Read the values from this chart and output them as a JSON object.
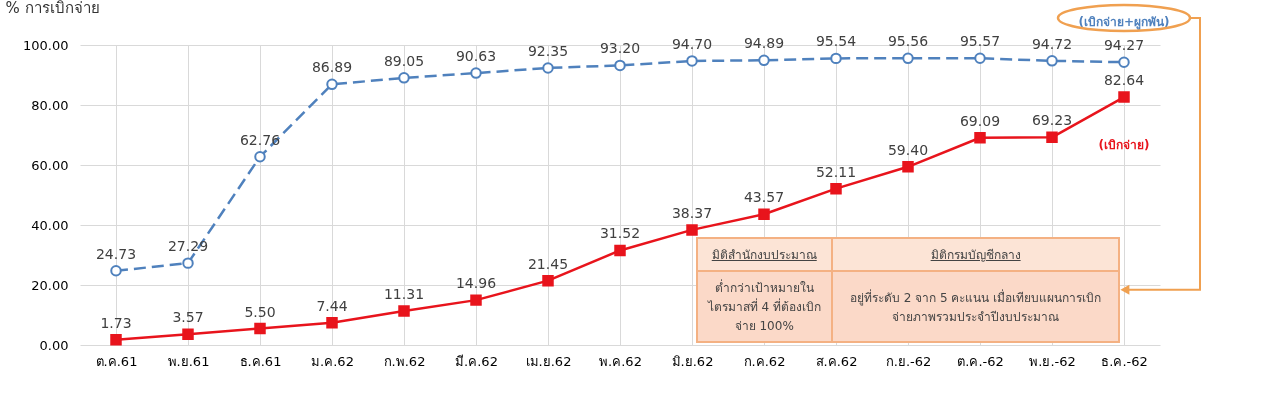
{
  "chart_data": {
    "type": "line",
    "ylabel": "% การเบิกจ่าย",
    "categories": [
      "ต.ค.61",
      "พ.ย.61",
      "ธ.ค.61",
      "ม.ค.62",
      "ก.พ.62",
      "มี.ค.62",
      "เม.ย.62",
      "พ.ค.62",
      "มิ.ย.62",
      "ก.ค.62",
      "ส.ค.62",
      "ก.ย.-62",
      "ต.ค.-62",
      "พ.ย.-62",
      "ธ.ค.-62"
    ],
    "series": [
      {
        "name": "(เบิกจ่าย+ผูกพัน)",
        "color": "#4f81bd",
        "line_style": "dashed",
        "marker": "circle",
        "values": [
          24.73,
          27.29,
          62.76,
          86.89,
          89.05,
          90.63,
          92.35,
          93.2,
          94.7,
          94.89,
          95.54,
          95.56,
          95.57,
          94.72,
          94.27
        ],
        "value_labels": [
          "24.73",
          "27.29",
          "62.76",
          "86.89",
          "89.05",
          "90.63",
          "92.35",
          "93.20",
          "94.70",
          "94.89",
          "95.54",
          "95.56",
          "95.57",
          "94.72",
          "94.27"
        ]
      },
      {
        "name": "(เบิกจ่าย)",
        "color": "#e8141c",
        "line_style": "solid",
        "marker": "square",
        "values": [
          1.73,
          3.57,
          5.5,
          7.44,
          11.31,
          14.96,
          21.45,
          31.52,
          38.37,
          43.57,
          52.11,
          59.4,
          69.09,
          69.23,
          82.64
        ],
        "value_labels": [
          "1.73",
          "3.57",
          "5.50",
          "7.44",
          "11.31",
          "14.96",
          "21.45",
          "31.52",
          "38.37",
          "43.57",
          "52.11",
          "59.40",
          "69.09",
          "69.23",
          "82.64"
        ]
      }
    ],
    "ylim": [
      0,
      100
    ],
    "yticks": [
      {
        "value": 0,
        "label": "0.00"
      },
      {
        "value": 20,
        "label": "20.00"
      },
      {
        "value": 40,
        "label": "40.00"
      },
      {
        "value": 60,
        "label": "60.00"
      },
      {
        "value": 80,
        "label": "80.00"
      },
      {
        "value": 100,
        "label": "100.00"
      }
    ],
    "grid": true,
    "annotations": [
      "มิติสำนักงบประมาณ",
      "มิติกรมบัญชีกลาง",
      "ต่ำกว่าเป้าหมายในไตรมาสที่ 4 ที่ต้องเบิกจ่าย 100%",
      "อยู่ที่ระดับ 2 จาก 5 คะแนน เมื่อเทียบแผนการเบิกจ่ายภาพรวมประจำปีงบประมาณ"
    ]
  }
}
